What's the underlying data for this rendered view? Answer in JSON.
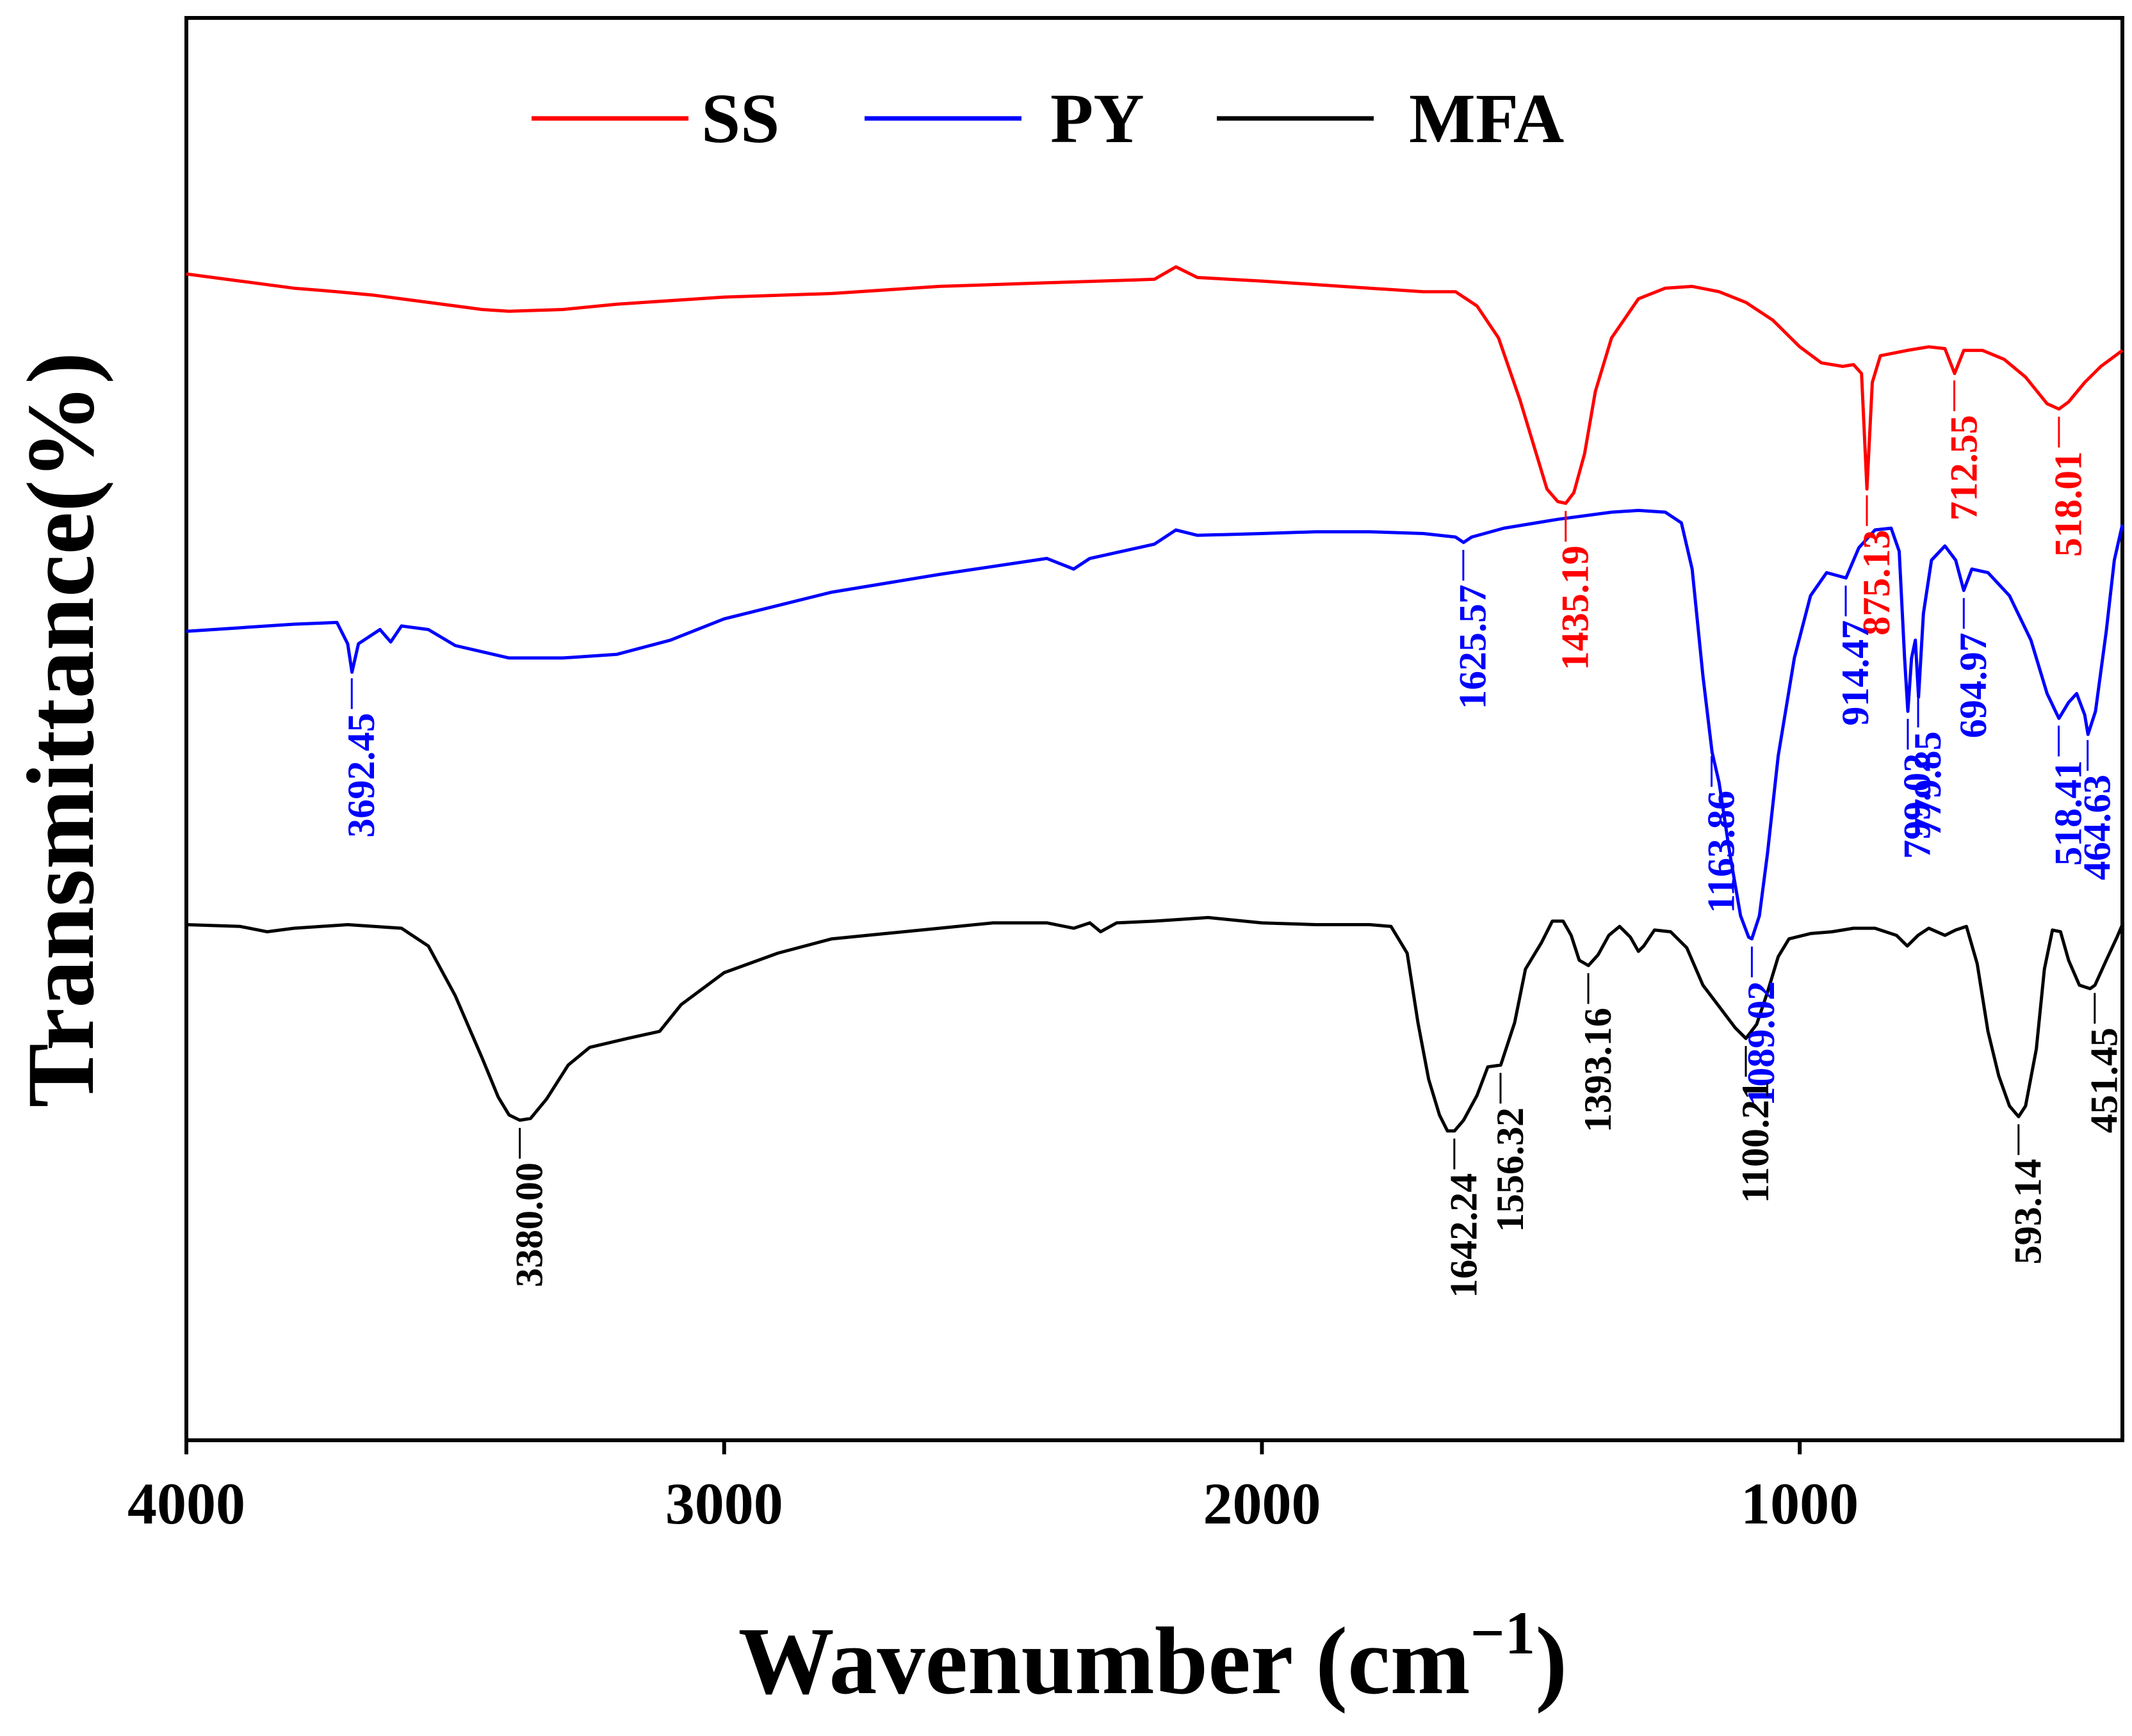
{
  "chart_data": {
    "type": "line",
    "xlabel": "Wavenumber (cm",
    "xlabel_sup": "−1",
    "xlabel_close": ")",
    "ylabel": "Transmittance(%)",
    "xlim": [
      4000,
      400
    ],
    "x_reversed": true,
    "y_ticks_shown": false,
    "grid": false,
    "legend_position": "top-center",
    "xticks": [
      {
        "value": 4000,
        "label": "4000"
      },
      {
        "value": 3000,
        "label": "3000"
      },
      {
        "value": 2000,
        "label": "2000"
      },
      {
        "value": 1000,
        "label": "1000"
      }
    ],
    "series": [
      {
        "name": "SS",
        "color": "#ff0000",
        "points": [
          [
            4000,
            65.6
          ],
          [
            3900,
            65.2
          ],
          [
            3800,
            64.8
          ],
          [
            3720,
            64.6
          ],
          [
            3650,
            64.4
          ],
          [
            3550,
            64.0
          ],
          [
            3450,
            63.6
          ],
          [
            3400,
            63.5
          ],
          [
            3300,
            63.6
          ],
          [
            3200,
            63.9
          ],
          [
            3000,
            64.3
          ],
          [
            2800,
            64.5
          ],
          [
            2600,
            64.9
          ],
          [
            2400,
            65.1
          ],
          [
            2200,
            65.3
          ],
          [
            2160,
            66.0
          ],
          [
            2120,
            65.4
          ],
          [
            2000,
            65.2
          ],
          [
            1900,
            65.0
          ],
          [
            1800,
            64.8
          ],
          [
            1700,
            64.6
          ],
          [
            1640,
            64.6
          ],
          [
            1600,
            63.8
          ],
          [
            1560,
            62.0
          ],
          [
            1520,
            58.5
          ],
          [
            1490,
            55.5
          ],
          [
            1470,
            53.5
          ],
          [
            1450,
            52.8
          ],
          [
            1435,
            52.7
          ],
          [
            1420,
            53.3
          ],
          [
            1400,
            55.5
          ],
          [
            1380,
            59.0
          ],
          [
            1350,
            62.0
          ],
          [
            1300,
            64.2
          ],
          [
            1250,
            64.8
          ],
          [
            1200,
            64.9
          ],
          [
            1150,
            64.6
          ],
          [
            1100,
            64.0
          ],
          [
            1050,
            63.0
          ],
          [
            1000,
            61.5
          ],
          [
            960,
            60.6
          ],
          [
            920,
            60.4
          ],
          [
            900,
            60.5
          ],
          [
            885,
            60.0
          ],
          [
            875,
            53.5
          ],
          [
            865,
            59.5
          ],
          [
            850,
            61.0
          ],
          [
            800,
            61.3
          ],
          [
            760,
            61.5
          ],
          [
            730,
            61.4
          ],
          [
            712,
            60.0
          ],
          [
            695,
            61.3
          ],
          [
            660,
            61.3
          ],
          [
            620,
            60.8
          ],
          [
            580,
            59.8
          ],
          [
            540,
            58.3
          ],
          [
            518,
            58.0
          ],
          [
            500,
            58.4
          ],
          [
            470,
            59.5
          ],
          [
            440,
            60.4
          ],
          [
            400,
            61.3
          ]
        ]
      },
      {
        "name": "PY",
        "color": "#0000ff",
        "points": [
          [
            4000,
            45.5
          ],
          [
            3900,
            45.7
          ],
          [
            3800,
            45.9
          ],
          [
            3720,
            46.0
          ],
          [
            3700,
            44.8
          ],
          [
            3692,
            43.2
          ],
          [
            3680,
            44.8
          ],
          [
            3640,
            45.6
          ],
          [
            3620,
            44.9
          ],
          [
            3600,
            45.8
          ],
          [
            3550,
            45.6
          ],
          [
            3500,
            44.7
          ],
          [
            3400,
            44.0
          ],
          [
            3300,
            44.0
          ],
          [
            3200,
            44.2
          ],
          [
            3100,
            45.0
          ],
          [
            3000,
            46.2
          ],
          [
            2800,
            47.7
          ],
          [
            2600,
            48.7
          ],
          [
            2400,
            49.6
          ],
          [
            2350,
            49.0
          ],
          [
            2320,
            49.6
          ],
          [
            2200,
            50.4
          ],
          [
            2160,
            51.2
          ],
          [
            2120,
            50.9
          ],
          [
            2000,
            51.0
          ],
          [
            1900,
            51.1
          ],
          [
            1800,
            51.1
          ],
          [
            1700,
            51.0
          ],
          [
            1640,
            50.8
          ],
          [
            1625,
            50.5
          ],
          [
            1610,
            50.8
          ],
          [
            1550,
            51.3
          ],
          [
            1450,
            51.8
          ],
          [
            1350,
            52.2
          ],
          [
            1300,
            52.3
          ],
          [
            1250,
            52.2
          ],
          [
            1220,
            51.6
          ],
          [
            1200,
            49.0
          ],
          [
            1180,
            43.0
          ],
          [
            1163,
            38.7
          ],
          [
            1150,
            37.0
          ],
          [
            1130,
            33.0
          ],
          [
            1110,
            29.5
          ],
          [
            1095,
            28.3
          ],
          [
            1089,
            28.2
          ],
          [
            1075,
            29.5
          ],
          [
            1060,
            33.0
          ],
          [
            1040,
            38.5
          ],
          [
            1010,
            44.0
          ],
          [
            980,
            47.5
          ],
          [
            950,
            48.8
          ],
          [
            914,
            48.5
          ],
          [
            890,
            50.2
          ],
          [
            860,
            51.2
          ],
          [
            830,
            51.3
          ],
          [
            815,
            50.0
          ],
          [
            805,
            44.0
          ],
          [
            799,
            41.0
          ],
          [
            792,
            44.0
          ],
          [
            785,
            45.0
          ],
          [
            779,
            41.8
          ],
          [
            770,
            46.5
          ],
          [
            755,
            49.5
          ],
          [
            730,
            50.3
          ],
          [
            710,
            49.5
          ],
          [
            695,
            47.8
          ],
          [
            680,
            49.0
          ],
          [
            650,
            48.8
          ],
          [
            610,
            47.5
          ],
          [
            570,
            45.0
          ],
          [
            540,
            42.0
          ],
          [
            518,
            40.6
          ],
          [
            500,
            41.5
          ],
          [
            485,
            42.0
          ],
          [
            470,
            40.8
          ],
          [
            464,
            39.7
          ],
          [
            450,
            41.0
          ],
          [
            430,
            45.5
          ],
          [
            415,
            49.5
          ],
          [
            400,
            51.5
          ]
        ]
      },
      {
        "name": "MFA",
        "color": "#000000",
        "points": [
          [
            4000,
            29.0
          ],
          [
            3900,
            28.9
          ],
          [
            3850,
            28.6
          ],
          [
            3800,
            28.8
          ],
          [
            3700,
            29.0
          ],
          [
            3600,
            28.8
          ],
          [
            3550,
            27.8
          ],
          [
            3500,
            25.0
          ],
          [
            3450,
            21.5
          ],
          [
            3420,
            19.3
          ],
          [
            3400,
            18.3
          ],
          [
            3380,
            18.0
          ],
          [
            3360,
            18.1
          ],
          [
            3330,
            19.2
          ],
          [
            3290,
            21.1
          ],
          [
            3250,
            22.1
          ],
          [
            3180,
            22.6
          ],
          [
            3120,
            23.0
          ],
          [
            3080,
            24.5
          ],
          [
            3000,
            26.3
          ],
          [
            2900,
            27.4
          ],
          [
            2800,
            28.2
          ],
          [
            2700,
            28.5
          ],
          [
            2600,
            28.8
          ],
          [
            2500,
            29.1
          ],
          [
            2400,
            29.1
          ],
          [
            2350,
            28.8
          ],
          [
            2320,
            29.1
          ],
          [
            2300,
            28.6
          ],
          [
            2270,
            29.1
          ],
          [
            2200,
            29.2
          ],
          [
            2100,
            29.4
          ],
          [
            2000,
            29.1
          ],
          [
            1900,
            29.0
          ],
          [
            1800,
            29.0
          ],
          [
            1760,
            28.9
          ],
          [
            1730,
            27.4
          ],
          [
            1710,
            23.5
          ],
          [
            1690,
            20.3
          ],
          [
            1670,
            18.3
          ],
          [
            1655,
            17.4
          ],
          [
            1642,
            17.4
          ],
          [
            1625,
            18.0
          ],
          [
            1600,
            19.4
          ],
          [
            1580,
            21.0
          ],
          [
            1556,
            21.1
          ],
          [
            1530,
            23.5
          ],
          [
            1510,
            26.5
          ],
          [
            1480,
            28.0
          ],
          [
            1460,
            29.2
          ],
          [
            1440,
            29.2
          ],
          [
            1425,
            28.4
          ],
          [
            1410,
            27.0
          ],
          [
            1393,
            26.7
          ],
          [
            1375,
            27.3
          ],
          [
            1355,
            28.4
          ],
          [
            1335,
            28.9
          ],
          [
            1315,
            28.3
          ],
          [
            1300,
            27.5
          ],
          [
            1290,
            27.8
          ],
          [
            1270,
            28.7
          ],
          [
            1240,
            28.6
          ],
          [
            1210,
            27.7
          ],
          [
            1180,
            25.6
          ],
          [
            1150,
            24.4
          ],
          [
            1120,
            23.2
          ],
          [
            1100,
            22.6
          ],
          [
            1080,
            23.4
          ],
          [
            1060,
            25.2
          ],
          [
            1040,
            27.2
          ],
          [
            1020,
            28.2
          ],
          [
            980,
            28.5
          ],
          [
            940,
            28.6
          ],
          [
            900,
            28.8
          ],
          [
            860,
            28.8
          ],
          [
            820,
            28.4
          ],
          [
            800,
            27.8
          ],
          [
            780,
            28.4
          ],
          [
            760,
            28.8
          ],
          [
            730,
            28.4
          ],
          [
            710,
            28.7
          ],
          [
            690,
            28.9
          ],
          [
            670,
            26.8
          ],
          [
            650,
            23.0
          ],
          [
            630,
            20.5
          ],
          [
            610,
            18.8
          ],
          [
            593,
            18.2
          ],
          [
            580,
            18.8
          ],
          [
            560,
            22.0
          ],
          [
            545,
            26.5
          ],
          [
            530,
            28.7
          ],
          [
            515,
            28.6
          ],
          [
            500,
            27.0
          ],
          [
            480,
            25.6
          ],
          [
            460,
            25.4
          ],
          [
            451,
            25.6
          ],
          [
            430,
            27.0
          ],
          [
            410,
            28.3
          ],
          [
            400,
            29.0
          ]
        ]
      }
    ],
    "annotations": [
      {
        "series": "SS",
        "x": 1435.19,
        "label": "1435.19"
      },
      {
        "series": "SS",
        "x": 875.13,
        "label": "875.13"
      },
      {
        "series": "SS",
        "x": 712.55,
        "label": "712.55"
      },
      {
        "series": "SS",
        "x": 518.01,
        "label": "518.01"
      },
      {
        "series": "PY",
        "x": 3692.45,
        "label": "3692.45"
      },
      {
        "series": "PY",
        "x": 1625.57,
        "label": "1625.57"
      },
      {
        "series": "PY",
        "x": 1163.86,
        "label": "1163.86"
      },
      {
        "series": "PY",
        "x": 1089.02,
        "label": "1089.02"
      },
      {
        "series": "PY",
        "x": 914.47,
        "label": "914.47"
      },
      {
        "series": "PY",
        "x": 799.02,
        "label": "799.02"
      },
      {
        "series": "PY",
        "x": 779.85,
        "label": "779.85"
      },
      {
        "series": "PY",
        "x": 694.97,
        "label": "694.97"
      },
      {
        "series": "PY",
        "x": 518.41,
        "label": "518.41"
      },
      {
        "series": "PY",
        "x": 464.63,
        "label": "464.63"
      },
      {
        "series": "MFA",
        "x": 3380.0,
        "label": "3380.00"
      },
      {
        "series": "MFA",
        "x": 1642.24,
        "label": "1642.24"
      },
      {
        "series": "MFA",
        "x": 1556.32,
        "label": "1556.32"
      },
      {
        "series": "MFA",
        "x": 1393.16,
        "label": "1393.16"
      },
      {
        "series": "MFA",
        "x": 1100.21,
        "label": "1100.21"
      },
      {
        "series": "MFA",
        "x": 593.14,
        "label": "593.14"
      },
      {
        "series": "MFA",
        "x": 451.45,
        "label": "451.45"
      }
    ]
  }
}
